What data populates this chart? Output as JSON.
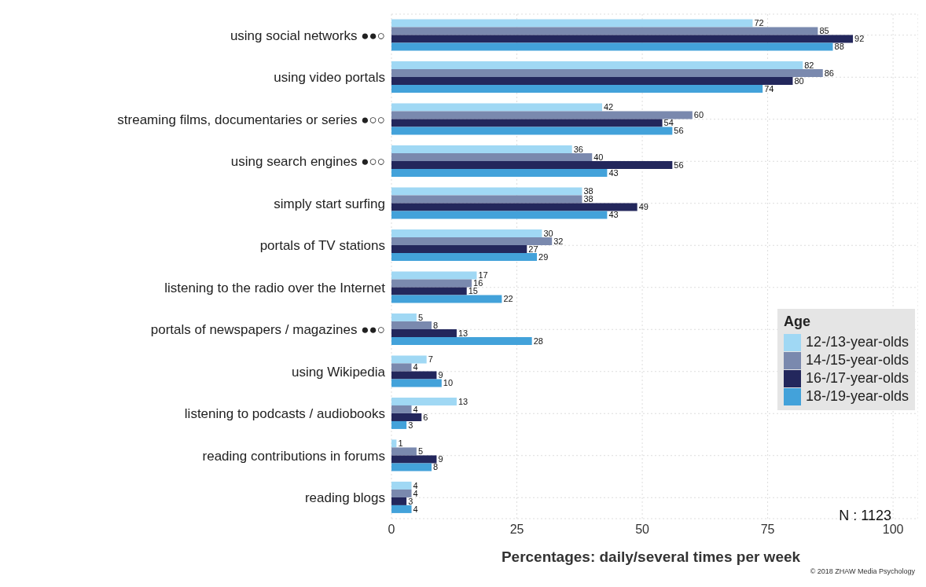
{
  "chart_data": {
    "type": "bar",
    "orientation": "horizontal",
    "xlabel": "Percentages: daily/several times per week",
    "legend_title": "Age",
    "categories": [
      "using social networks ●●○",
      "using video portals",
      "streaming films, documentaries or series ●○○",
      "using search engines ●○○",
      "simply start surfing",
      "portals of TV stations",
      "listening to the radio over the Internet",
      "portals of newspapers / magazines ●●○",
      "using Wikipedia",
      "listening to podcasts / audiobooks",
      "reading contributions in forums",
      "reading blogs"
    ],
    "series": [
      {
        "name": "12-/13-year-olds",
        "color": "#a0d8f4",
        "values": [
          72,
          82,
          42,
          36,
          38,
          30,
          17,
          5,
          7,
          13,
          1,
          4
        ]
      },
      {
        "name": "14-/15-year-olds",
        "color": "#7a89ae",
        "values": [
          85,
          86,
          60,
          40,
          38,
          32,
          16,
          8,
          4,
          4,
          5,
          4
        ]
      },
      {
        "name": "16-/17-year-olds",
        "color": "#23275c",
        "values": [
          92,
          80,
          54,
          56,
          49,
          27,
          15,
          13,
          9,
          6,
          9,
          3
        ]
      },
      {
        "name": "18-/19-year-olds",
        "color": "#43a2da",
        "values": [
          88,
          74,
          56,
          43,
          43,
          29,
          22,
          28,
          10,
          3,
          8,
          4
        ]
      }
    ],
    "xlim": [
      0,
      105
    ],
    "xticks": [
      0,
      25,
      50,
      75,
      100
    ],
    "grid": true,
    "legend": "right",
    "data_labels": true,
    "annotations": [
      "N : 1123",
      "© 2018 ZHAW Media Psychology"
    ]
  }
}
